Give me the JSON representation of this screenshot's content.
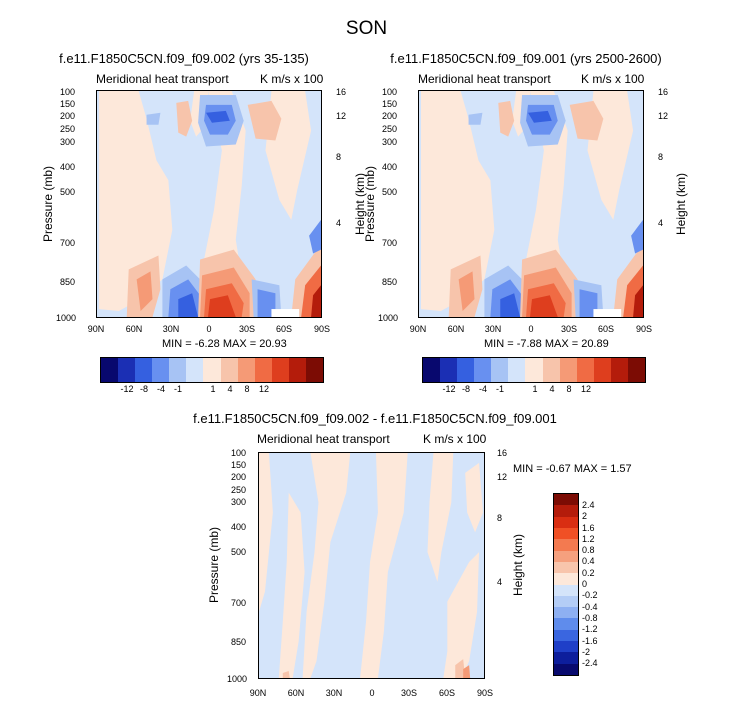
{
  "page_title": "SON",
  "panels": [
    {
      "id": "p1",
      "title": "f.e11.F1850C5CN.f09_f09.002 (yrs 35-135)",
      "left_label": "Meridional heat transport",
      "right_label": "K m/s x 100",
      "ylabel": "Pressure (mb)",
      "y2label": "Height (km)",
      "stats": "MIN = -6.28  MAX = 20.93",
      "pressure_ticks": [
        "100",
        "150",
        "200",
        "250",
        "300",
        "400",
        "500",
        "700",
        "850",
        "1000"
      ],
      "height_ticks": [
        "16",
        "12",
        "8",
        "4"
      ],
      "lat_ticks": [
        "90N",
        "60N",
        "30N",
        "0",
        "30S",
        "60S",
        "90S"
      ],
      "colorbar_labels": [
        "-12",
        "-8",
        "-4",
        "-1",
        "1",
        "4",
        "8",
        "12"
      ]
    },
    {
      "id": "p2",
      "title": "f.e11.F1850C5CN.f09_f09.001 (yrs 2500-2600)",
      "left_label": "Meridional heat transport",
      "right_label": "K m/s x 100",
      "ylabel": "Pressure (mb)",
      "y2label": "Height (km)",
      "stats": "MIN = -7.88  MAX = 20.89",
      "pressure_ticks": [
        "100",
        "150",
        "200",
        "250",
        "300",
        "400",
        "500",
        "700",
        "850",
        "1000"
      ],
      "height_ticks": [
        "16",
        "12",
        "8",
        "4"
      ],
      "lat_ticks": [
        "90N",
        "60N",
        "30N",
        "0",
        "30S",
        "60S",
        "90S"
      ],
      "colorbar_labels": [
        "-12",
        "-8",
        "-4",
        "-1",
        "1",
        "4",
        "8",
        "12"
      ]
    },
    {
      "id": "p3",
      "title": "f.e11.F1850C5CN.f09_f09.002 - f.e11.F1850C5CN.f09_f09.001",
      "left_label": "Meridional heat transport",
      "right_label": "K m/s x 100",
      "ylabel": "Pressure (mb)",
      "y2label": "Height (km)",
      "stats": "MIN = -0.67  MAX =  1.57",
      "pressure_ticks": [
        "100",
        "150",
        "200",
        "250",
        "300",
        "400",
        "500",
        "700",
        "850",
        "1000"
      ],
      "height_ticks": [
        "16",
        "12",
        "8",
        "4"
      ],
      "lat_ticks": [
        "90N",
        "60N",
        "30N",
        "0",
        "30S",
        "60S",
        "90S"
      ],
      "colorbar_labels": [
        "2.4",
        "2",
        "1.6",
        "1.2",
        "0.8",
        "0.4",
        "0.2",
        "0",
        "-0.2",
        "-0.4",
        "-0.8",
        "-1.2",
        "-1.6",
        "-2",
        "-2.4"
      ]
    }
  ],
  "chart_data": [
    {
      "type": "heatmap",
      "title": "f.e11.F1850C5CN.f09_f09.002 (yrs 35-135)",
      "xlabel": "",
      "ylabel": "Pressure (mb)",
      "x_ticks": [
        "90N",
        "60N",
        "30N",
        "0",
        "30S",
        "60S",
        "90S"
      ],
      "y_ticks": [
        100,
        150,
        200,
        250,
        300,
        400,
        500,
        700,
        850,
        1000
      ],
      "ylim": [
        1000,
        100
      ],
      "levels": [
        -12,
        -8,
        -4,
        -1,
        1,
        4,
        8,
        12
      ],
      "min": -6.28,
      "max": 20.93
    },
    {
      "type": "heatmap",
      "title": "f.e11.F1850C5CN.f09_f09.001 (yrs 2500-2600)",
      "xlabel": "",
      "ylabel": "Pressure (mb)",
      "x_ticks": [
        "90N",
        "60N",
        "30N",
        "0",
        "30S",
        "60S",
        "90S"
      ],
      "y_ticks": [
        100,
        150,
        200,
        250,
        300,
        400,
        500,
        700,
        850,
        1000
      ],
      "ylim": [
        1000,
        100
      ],
      "levels": [
        -12,
        -8,
        -4,
        -1,
        1,
        4,
        8,
        12
      ],
      "min": -7.88,
      "max": 20.89
    },
    {
      "type": "heatmap",
      "title": "f.e11.F1850C5CN.f09_f09.002 - f.e11.F1850C5CN.f09_f09.001",
      "xlabel": "",
      "ylabel": "Pressure (mb)",
      "x_ticks": [
        "90N",
        "60N",
        "30N",
        "0",
        "30S",
        "60S",
        "90S"
      ],
      "y_ticks": [
        100,
        150,
        200,
        250,
        300,
        400,
        500,
        700,
        850,
        1000
      ],
      "ylim": [
        1000,
        100
      ],
      "levels": [
        -2.4,
        -2,
        -1.6,
        -1.2,
        -0.8,
        -0.4,
        -0.2,
        0,
        0.2,
        0.4,
        0.8,
        1.2,
        1.6,
        2,
        2.4
      ],
      "min": -0.67,
      "max": 1.57
    }
  ],
  "colors": {
    "cb1": [
      "#08086e",
      "#1b2fb4",
      "#3560e0",
      "#6890f0",
      "#a7c3f4",
      "#d4e4fa",
      "#fde8da",
      "#f7c4ab",
      "#f59a76",
      "#f06b44",
      "#de3e1e",
      "#b41c0b",
      "#7c0c04"
    ],
    "cb3": [
      "#7c0c04",
      "#b41c0b",
      "#d92e12",
      "#f05025",
      "#f37a50",
      "#f5a07e",
      "#f8c5ac",
      "#fde8da",
      "#d4e4fa",
      "#b4cdf6",
      "#8eb0f2",
      "#5f8cec",
      "#3a66e0",
      "#1f3fc8",
      "#0d1e9c",
      "#080a6e"
    ]
  }
}
